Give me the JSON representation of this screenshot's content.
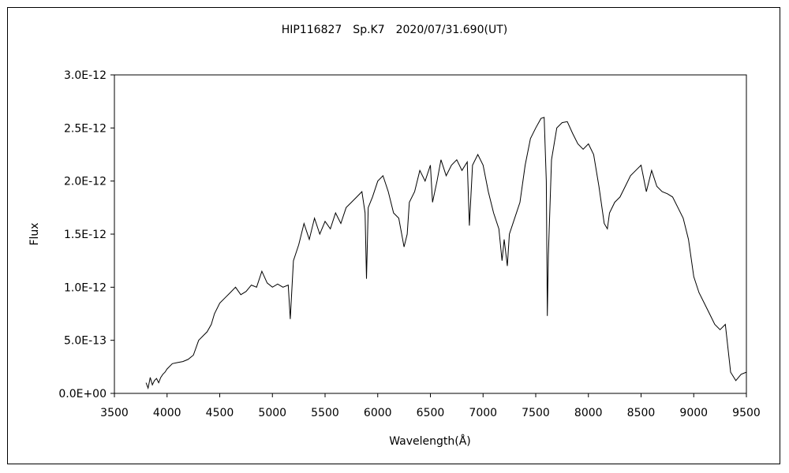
{
  "chart_data": {
    "type": "line",
    "title": "HIP116827　Sp.K7　2020/07/31.690(UT)",
    "xlabel": "Wavelength(Å)",
    "ylabel": "Flux",
    "xlim": [
      3500,
      9500
    ],
    "ylim": [
      0,
      3e-12
    ],
    "x_ticks": [
      3500,
      4000,
      4500,
      5000,
      5500,
      6000,
      6500,
      7000,
      7500,
      8000,
      8500,
      9000,
      9500
    ],
    "x_tick_labels": [
      "3500",
      "4000",
      "4500",
      "5000",
      "5500",
      "6000",
      "6500",
      "7000",
      "7500",
      "8000",
      "8500",
      "9000",
      "9500"
    ],
    "y_ticks": [
      0,
      5e-13,
      1e-12,
      1.5e-12,
      2e-12,
      2.5e-12,
      3e-12
    ],
    "y_tick_labels": [
      "0.0E+00",
      "5.0E-13",
      "1.0E-12",
      "1.5E-12",
      "2.0E-12",
      "2.5E-12",
      "3.0E-12"
    ],
    "grid": false,
    "legend": "none",
    "color": "#000000",
    "series": [
      {
        "x": [
          3800,
          3820,
          3840,
          3860,
          3880,
          3900,
          3920,
          3940,
          3960,
          3980,
          4000,
          4050,
          4100,
          4150,
          4200,
          4250,
          4300,
          4350,
          4380,
          4420,
          4450,
          4500,
          4550,
          4600,
          4650,
          4700,
          4750,
          4800,
          4850,
          4900,
          4950,
          5000,
          5050,
          5100,
          5150,
          5170,
          5200,
          5250,
          5300,
          5350,
          5400,
          5450,
          5500,
          5550,
          5600,
          5650,
          5700,
          5750,
          5800,
          5850,
          5880,
          5893,
          5910,
          5950,
          6000,
          6050,
          6100,
          6150,
          6200,
          6250,
          6280,
          6300,
          6350,
          6400,
          6450,
          6500,
          6520,
          6563,
          6600,
          6650,
          6700,
          6750,
          6800,
          6850,
          6870,
          6900,
          6950,
          7000,
          7050,
          7100,
          7150,
          7180,
          7200,
          7230,
          7250,
          7300,
          7350,
          7400,
          7450,
          7500,
          7550,
          7580,
          7600,
          7610,
          7620,
          7650,
          7700,
          7750,
          7800,
          7850,
          7900,
          7950,
          8000,
          8050,
          8100,
          8150,
          8180,
          8200,
          8250,
          8300,
          8350,
          8400,
          8450,
          8500,
          8550,
          8600,
          8650,
          8700,
          8750,
          8800,
          8850,
          8900,
          8950,
          9000,
          9050,
          9100,
          9150,
          9200,
          9250,
          9300,
          9350,
          9400,
          9450,
          9500
        ],
        "y": [
          1e-13,
          5e-14,
          1.5e-13,
          8e-14,
          1.2e-13,
          1.4e-13,
          1e-13,
          1.5e-13,
          1.8e-13,
          2e-13,
          2.3e-13,
          2.8e-13,
          2.9e-13,
          3e-13,
          3.2e-13,
          3.6e-13,
          5e-13,
          5.5e-13,
          5.8e-13,
          6.5e-13,
          7.5e-13,
          8.5e-13,
          9e-13,
          9.5e-13,
          1e-12,
          9.3e-13,
          9.6e-13,
          1.02e-12,
          1e-12,
          1.15e-12,
          1.04e-12,
          1e-12,
          1.03e-12,
          1e-12,
          1.02e-12,
          7e-13,
          1.25e-12,
          1.4e-12,
          1.6e-12,
          1.45e-12,
          1.65e-12,
          1.5e-12,
          1.62e-12,
          1.55e-12,
          1.7e-12,
          1.6e-12,
          1.75e-12,
          1.8e-12,
          1.85e-12,
          1.9e-12,
          1.7e-12,
          1.08e-12,
          1.75e-12,
          1.85e-12,
          2e-12,
          2.05e-12,
          1.9e-12,
          1.7e-12,
          1.65e-12,
          1.38e-12,
          1.5e-12,
          1.8e-12,
          1.9e-12,
          2.1e-12,
          2e-12,
          2.15e-12,
          1.8e-12,
          2e-12,
          2.2e-12,
          2.05e-12,
          2.15e-12,
          2.2e-12,
          2.1e-12,
          2.18e-12,
          1.58e-12,
          2.15e-12,
          2.25e-12,
          2.15e-12,
          1.9e-12,
          1.7e-12,
          1.55e-12,
          1.25e-12,
          1.45e-12,
          1.2e-12,
          1.5e-12,
          1.65e-12,
          1.8e-12,
          2.15e-12,
          2.4e-12,
          2.5e-12,
          2.59e-12,
          2.6e-12,
          2e-12,
          7.3e-13,
          1.3e-12,
          2.2e-12,
          2.5e-12,
          2.55e-12,
          2.56e-12,
          2.45e-12,
          2.35e-12,
          2.3e-12,
          2.35e-12,
          2.25e-12,
          1.95e-12,
          1.6e-12,
          1.55e-12,
          1.7e-12,
          1.8e-12,
          1.85e-12,
          1.95e-12,
          2.05e-12,
          2.1e-12,
          2.15e-12,
          1.9e-12,
          2.1e-12,
          1.95e-12,
          1.9e-12,
          1.88e-12,
          1.85e-12,
          1.75e-12,
          1.65e-12,
          1.45e-12,
          1.1e-12,
          9.5e-13,
          8.5e-13,
          7.5e-13,
          6.5e-13,
          6e-13,
          6.5e-13,
          2e-13,
          1.2e-13,
          1.8e-13,
          2e-13
        ]
      }
    ]
  }
}
